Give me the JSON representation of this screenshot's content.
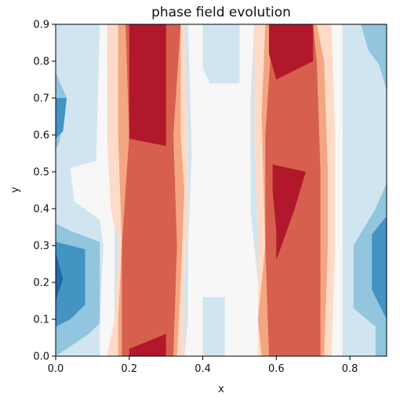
{
  "chart_data": {
    "type": "contour",
    "title": "phase field evolution",
    "xlabel": "x",
    "ylabel": "y",
    "xlim": [
      0.0,
      0.9
    ],
    "ylim": [
      0.0,
      0.9
    ],
    "xticks": [
      "0.0",
      "0.2",
      "0.4",
      "0.6",
      "0.8"
    ],
    "yticks": [
      "0.0",
      "0.1",
      "0.2",
      "0.3",
      "0.4",
      "0.5",
      "0.6",
      "0.7",
      "0.8",
      "0.9"
    ],
    "colormap": "RdBu_r",
    "level_colors": [
      "#2166ac",
      "#4393c3",
      "#92c5de",
      "#d1e5f0",
      "#f7f7f7",
      "#fddbc7",
      "#f4a582",
      "#d6604d",
      "#b2182b",
      "#67001f"
    ],
    "grid": false,
    "regions": [
      {
        "level": 3,
        "polygon": [
          [
            0,
            0
          ],
          [
            0.9,
            0
          ],
          [
            0.9,
            0.9
          ],
          [
            0,
            0.9
          ]
        ]
      },
      {
        "level": 2,
        "polygon": [
          [
            0,
            0.36
          ],
          [
            0.04,
            0.34
          ],
          [
            0.12,
            0.31
          ],
          [
            0.12,
            0.09
          ],
          [
            0.09,
            0.06
          ],
          [
            0,
            0
          ]
        ]
      },
      {
        "level": 2,
        "polygon": [
          [
            0,
            0.77
          ],
          [
            0.03,
            0.7
          ],
          [
            0.01,
            0.58
          ],
          [
            0,
            0.56
          ]
        ]
      },
      {
        "level": 2,
        "polygon": [
          [
            0.9,
            0
          ],
          [
            0.9,
            0.47
          ],
          [
            0.87,
            0.4
          ],
          [
            0.81,
            0.3
          ],
          [
            0.81,
            0.13
          ],
          [
            0.87,
            0.08
          ],
          [
            0.87,
            0
          ]
        ]
      },
      {
        "level": 2,
        "polygon": [
          [
            0.9,
            0.72
          ],
          [
            0.88,
            0.79
          ],
          [
            0.85,
            0.83
          ],
          [
            0.83,
            0.9
          ],
          [
            0.9,
            0.9
          ]
        ]
      },
      {
        "level": 1,
        "polygon": [
          [
            0,
            0.31
          ],
          [
            0.08,
            0.29
          ],
          [
            0.08,
            0.14
          ],
          [
            0.04,
            0.1
          ],
          [
            0,
            0.08
          ]
        ]
      },
      {
        "level": 1,
        "polygon": [
          [
            0,
            0.7
          ],
          [
            0.03,
            0.7
          ],
          [
            0.02,
            0.61
          ],
          [
            0,
            0.59
          ]
        ]
      },
      {
        "level": 1,
        "polygon": [
          [
            0.9,
            0.03
          ],
          [
            0.9,
            0.38
          ],
          [
            0.86,
            0.33
          ],
          [
            0.86,
            0.18
          ],
          [
            0.9,
            0.1
          ]
        ]
      },
      {
        "level": 0,
        "polygon": [
          [
            0,
            0.28
          ],
          [
            0.02,
            0.21
          ],
          [
            0,
            0.15
          ]
        ]
      },
      {
        "level": 4,
        "polygon": [
          [
            0.12,
            0
          ],
          [
            0.16,
            0
          ],
          [
            0.16,
            0.9
          ],
          [
            0.12,
            0.9
          ],
          [
            0.11,
            0.53
          ],
          [
            0.04,
            0.51
          ],
          [
            0.05,
            0.42
          ],
          [
            0.12,
            0.37
          ],
          [
            0.13,
            0.3
          ],
          [
            0.12,
            0.1
          ]
        ]
      },
      {
        "level": 4,
        "polygon": [
          [
            0.35,
            0
          ],
          [
            0.4,
            0
          ],
          [
            0.4,
            0.16
          ],
          [
            0.46,
            0.16
          ],
          [
            0.46,
            0
          ],
          [
            0.56,
            0
          ],
          [
            0.55,
            0.2
          ],
          [
            0.53,
            0.4
          ],
          [
            0.53,
            0.7
          ],
          [
            0.54,
            0.9
          ],
          [
            0.5,
            0.9
          ],
          [
            0.5,
            0.74
          ],
          [
            0.42,
            0.74
          ],
          [
            0.4,
            0.78
          ],
          [
            0.4,
            0.9
          ],
          [
            0.36,
            0.9
          ],
          [
            0.37,
            0.55
          ],
          [
            0.36,
            0.3
          ],
          [
            0.36,
            0.1
          ]
        ]
      },
      {
        "level": 4,
        "polygon": [
          [
            0.75,
            0
          ],
          [
            0.78,
            0
          ],
          [
            0.78,
            0.9
          ],
          [
            0.75,
            0.9
          ],
          [
            0.75,
            0.65
          ],
          [
            0.76,
            0.4
          ],
          [
            0.75,
            0.2
          ]
        ]
      },
      {
        "level": 5,
        "polygon": [
          [
            0.14,
            0
          ],
          [
            0.35,
            0
          ],
          [
            0.35,
            0.2
          ],
          [
            0.36,
            0.4
          ],
          [
            0.36,
            0.6
          ],
          [
            0.35,
            0.9
          ],
          [
            0.14,
            0.9
          ],
          [
            0.14,
            0.6
          ],
          [
            0.15,
            0.4
          ],
          [
            0.17,
            0.3
          ],
          [
            0.16,
            0.1
          ]
        ]
      },
      {
        "level": 5,
        "polygon": [
          [
            0.55,
            0
          ],
          [
            0.75,
            0
          ],
          [
            0.76,
            0.3
          ],
          [
            0.76,
            0.6
          ],
          [
            0.75,
            0.9
          ],
          [
            0.54,
            0.9
          ],
          [
            0.54,
            0.6
          ],
          [
            0.55,
            0.3
          ]
        ]
      },
      {
        "level": 6,
        "polygon": [
          [
            0.17,
            0
          ],
          [
            0.33,
            0
          ],
          [
            0.34,
            0.2
          ],
          [
            0.35,
            0.45
          ],
          [
            0.34,
            0.6
          ],
          [
            0.34,
            0.9
          ],
          [
            0.17,
            0.9
          ],
          [
            0.17,
            0.6
          ],
          [
            0.18,
            0.3
          ],
          [
            0.17,
            0.1
          ]
        ]
      },
      {
        "level": 6,
        "polygon": [
          [
            0.56,
            0
          ],
          [
            0.73,
            0
          ],
          [
            0.74,
            0.3
          ],
          [
            0.74,
            0.5
          ],
          [
            0.73,
            0.8
          ],
          [
            0.71,
            0.9
          ],
          [
            0.57,
            0.9
          ],
          [
            0.56,
            0.65
          ],
          [
            0.57,
            0.3
          ],
          [
            0.55,
            0.1
          ]
        ]
      },
      {
        "level": 7,
        "polygon": [
          [
            0.18,
            0
          ],
          [
            0.32,
            0
          ],
          [
            0.33,
            0.3
          ],
          [
            0.32,
            0.6
          ],
          [
            0.34,
            0.9
          ],
          [
            0.19,
            0.9
          ],
          [
            0.2,
            0.6
          ],
          [
            0.18,
            0.3
          ]
        ]
      },
      {
        "level": 7,
        "polygon": [
          [
            0.58,
            0
          ],
          [
            0.72,
            0
          ],
          [
            0.72,
            0.3
          ],
          [
            0.72,
            0.5
          ],
          [
            0.71,
            0.8
          ],
          [
            0.7,
            0.9
          ],
          [
            0.59,
            0.9
          ],
          [
            0.57,
            0.6
          ],
          [
            0.57,
            0.3
          ]
        ]
      },
      {
        "level": 8,
        "polygon": [
          [
            0.2,
            0.9
          ],
          [
            0.3,
            0.9
          ],
          [
            0.3,
            0.57
          ],
          [
            0.2,
            0.59
          ]
        ]
      },
      {
        "level": 8,
        "polygon": [
          [
            0.58,
            0.9
          ],
          [
            0.7,
            0.9
          ],
          [
            0.7,
            0.8
          ],
          [
            0.6,
            0.75
          ],
          [
            0.58,
            0.82
          ]
        ]
      },
      {
        "level": 8,
        "polygon": [
          [
            0.59,
            0.52
          ],
          [
            0.68,
            0.5
          ],
          [
            0.65,
            0.4
          ],
          [
            0.6,
            0.26
          ],
          [
            0.6,
            0.34
          ],
          [
            0.59,
            0.45
          ]
        ]
      },
      {
        "level": 8,
        "polygon": [
          [
            0.2,
            0
          ],
          [
            0.3,
            0
          ],
          [
            0.3,
            0.06
          ],
          [
            0.2,
            0.02
          ]
        ]
      }
    ]
  }
}
